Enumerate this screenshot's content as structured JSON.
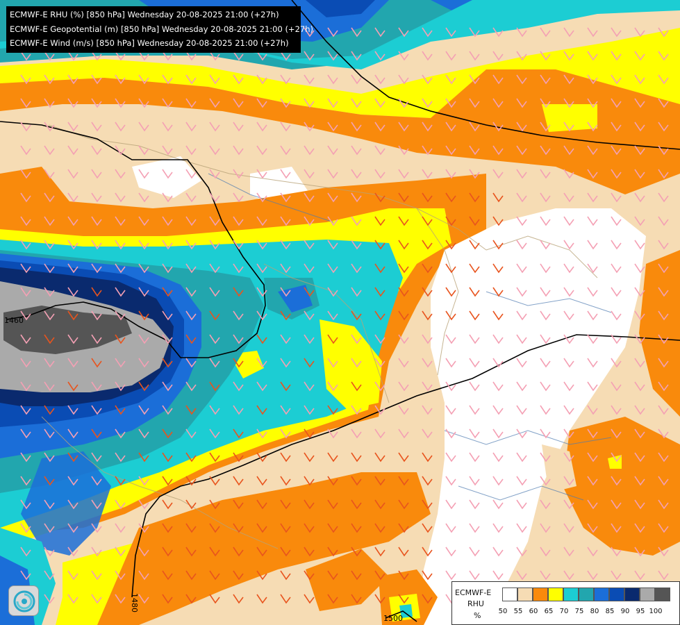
{
  "header": {
    "lines": [
      "ECMWF-E RHU (%) [850 hPa] Wednesday 20-08-2025 21:00 (+27h)",
      "ECMWF-E Geopotential (m) [850 hPa] Wednesday 20-08-2025 21:00 (+27h)",
      "ECMWF-E Wind (m/s) [850 hPa] Wednesday 20-08-2025 21:00 (+27h)"
    ]
  },
  "legend": {
    "model": "ECMWF-E",
    "variable": "RHU",
    "unit": "%",
    "ticks": [
      "50",
      "55",
      "60",
      "65",
      "70",
      "75",
      "80",
      "85",
      "90",
      "95",
      "100"
    ],
    "colors": [
      "#ffffff",
      "#f6dcb4",
      "#f98a0c",
      "#ffff00",
      "#1ccdd3",
      "#22a6ae",
      "#1b6ed8",
      "#0a4cb4",
      "#0a2a6e",
      "#aaaaaa",
      "#555555"
    ]
  },
  "contours": {
    "labels": [
      "1460",
      "1480",
      "1500"
    ]
  },
  "logo": {
    "icon": "ecmwf-swirl-icon"
  }
}
